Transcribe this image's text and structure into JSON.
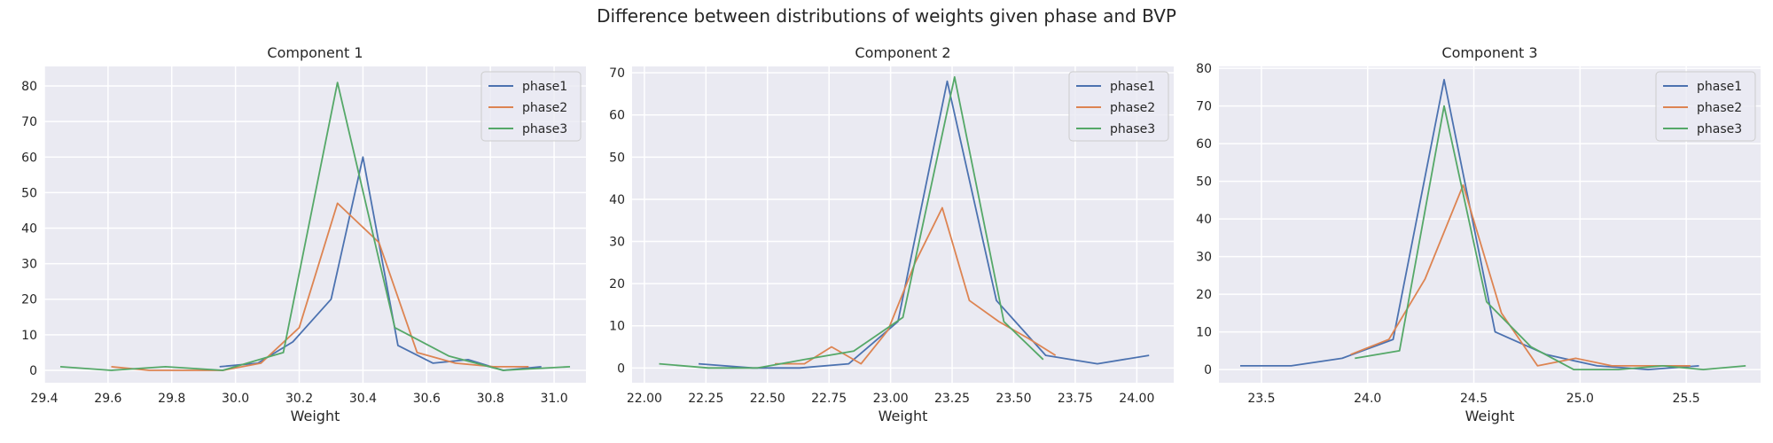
{
  "suptitle": "Difference between distributions of weights given phase and BVP",
  "colors": {
    "phase1": "#4c72b0",
    "phase2": "#dd8452",
    "phase3": "#55a868",
    "panel_bg": "#eaeaf2",
    "grid": "#ffffff"
  },
  "chart_data": [
    {
      "type": "line",
      "title": "Component 1",
      "xlabel": "Weight",
      "ylabel": "",
      "xlim": [
        29.4,
        31.1
      ],
      "ylim": [
        -3.5,
        85.5
      ],
      "xticks": [
        29.4,
        29.6,
        29.8,
        30.0,
        30.2,
        30.4,
        30.6,
        30.8,
        31.0
      ],
      "xtick_labels": [
        "29.4",
        "29.6",
        "29.8",
        "30.0",
        "30.2",
        "30.4",
        "30.6",
        "30.8",
        "31.0"
      ],
      "yticks": [
        0,
        10,
        20,
        30,
        40,
        50,
        60,
        70,
        80
      ],
      "ytick_labels": [
        "0",
        "10",
        "20",
        "30",
        "40",
        "50",
        "60",
        "70",
        "80"
      ],
      "legend": "top-right",
      "grid": true,
      "series": [
        {
          "name": "phase1",
          "x": [
            29.95,
            30.07,
            30.18,
            30.3,
            30.4,
            30.51,
            30.62,
            30.73,
            30.84,
            30.96
          ],
          "y": [
            1,
            2,
            8,
            20,
            60,
            7,
            2,
            3,
            0,
            1
          ]
        },
        {
          "name": "phase2",
          "x": [
            29.61,
            29.73,
            29.84,
            29.96,
            30.08,
            30.2,
            30.32,
            30.45,
            30.57,
            30.69,
            30.81,
            30.92
          ],
          "y": [
            1,
            0,
            0,
            0,
            2,
            12,
            47,
            36,
            5,
            2,
            1,
            1
          ]
        },
        {
          "name": "phase3",
          "x": [
            29.45,
            29.61,
            29.78,
            29.96,
            30.15,
            30.32,
            30.5,
            30.67,
            30.84,
            31.05
          ],
          "y": [
            1,
            0,
            1,
            0,
            5,
            81,
            12,
            4,
            0,
            1
          ]
        }
      ]
    },
    {
      "type": "line",
      "title": "Component 2",
      "xlabel": "Weight",
      "ylabel": "",
      "xlim": [
        21.95,
        24.15
      ],
      "ylim": [
        -3.5,
        71.5
      ],
      "xticks": [
        22.0,
        22.25,
        22.5,
        22.75,
        23.0,
        23.25,
        23.5,
        23.75,
        24.0
      ],
      "xtick_labels": [
        "22.00",
        "22.25",
        "22.50",
        "22.75",
        "23.00",
        "23.25",
        "23.50",
        "23.75",
        "24.00"
      ],
      "yticks": [
        0,
        10,
        20,
        30,
        40,
        50,
        60,
        70
      ],
      "ytick_labels": [
        "0",
        "10",
        "20",
        "30",
        "40",
        "50",
        "60",
        "70"
      ],
      "legend": "top-right",
      "grid": true,
      "series": [
        {
          "name": "phase1",
          "x": [
            22.22,
            22.44,
            22.63,
            22.83,
            23.03,
            23.23,
            23.43,
            23.63,
            23.84,
            24.05
          ],
          "y": [
            1,
            0,
            0,
            1,
            11,
            68,
            16,
            3,
            1,
            3
          ]
        },
        {
          "name": "phase2",
          "x": [
            22.53,
            22.65,
            22.76,
            22.88,
            22.99,
            23.1,
            23.21,
            23.32,
            23.44,
            23.56,
            23.67
          ],
          "y": [
            1,
            1,
            5,
            1,
            9,
            25,
            38,
            16,
            11,
            7,
            3
          ]
        },
        {
          "name": "phase3",
          "x": [
            22.06,
            22.26,
            22.46,
            22.65,
            22.85,
            23.05,
            23.26,
            23.46,
            23.62
          ],
          "y": [
            1,
            0,
            0,
            2,
            4,
            12,
            69,
            11,
            2
          ]
        }
      ]
    },
    {
      "type": "line",
      "title": "Component 3",
      "xlabel": "Weight",
      "ylabel": "",
      "xlim": [
        23.3,
        25.85
      ],
      "ylim": [
        -3.5,
        80.5
      ],
      "xticks": [
        23.5,
        24.0,
        24.5,
        25.0,
        25.5
      ],
      "xtick_labels": [
        "23.5",
        "24.0",
        "24.5",
        "25.0",
        "25.5"
      ],
      "yticks": [
        0,
        10,
        20,
        30,
        40,
        50,
        60,
        70,
        80
      ],
      "ytick_labels": [
        "0",
        "10",
        "20",
        "30",
        "40",
        "50",
        "60",
        "70",
        "80"
      ],
      "legend": "top-right",
      "grid": true,
      "series": [
        {
          "name": "phase1",
          "x": [
            23.4,
            23.64,
            23.88,
            24.12,
            24.36,
            24.6,
            24.84,
            25.08,
            25.32,
            25.56
          ],
          "y": [
            1,
            1,
            3,
            8,
            77,
            10,
            4,
            1,
            0,
            1
          ]
        },
        {
          "name": "phase2",
          "x": [
            23.92,
            24.1,
            24.27,
            24.45,
            24.63,
            24.8,
            24.98,
            25.15,
            25.33,
            25.52
          ],
          "y": [
            4,
            8,
            24,
            49,
            15,
            1,
            3,
            1,
            1,
            1
          ]
        },
        {
          "name": "phase3",
          "x": [
            23.94,
            24.15,
            24.36,
            24.56,
            24.77,
            24.97,
            25.18,
            25.39,
            25.58,
            25.78
          ],
          "y": [
            3,
            5,
            70,
            18,
            6,
            0,
            0,
            1,
            0,
            1
          ]
        }
      ]
    }
  ]
}
